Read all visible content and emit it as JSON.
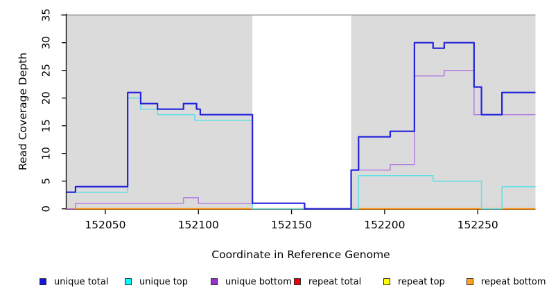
{
  "chart_data": {
    "type": "line",
    "title": "",
    "xlabel": "Coordinate in Reference Genome",
    "ylabel": "Read Coverage Depth",
    "xlim": [
      152029,
      152281
    ],
    "ylim": [
      0,
      35
    ],
    "x_ticks": [
      152050,
      152100,
      152150,
      152200,
      152250
    ],
    "y_ticks": [
      0,
      5,
      10,
      15,
      20,
      25,
      30,
      35
    ],
    "step_mode": "after",
    "grid": "off",
    "background_shading": {
      "color": "#dbdbdb",
      "regions": [
        {
          "start": 152029,
          "end": 152129
        },
        {
          "start": 152182,
          "end": 152281
        }
      ]
    },
    "reference_line": {
      "y": 35,
      "color": "#9d9d9d"
    },
    "series": [
      {
        "name": "repeat total",
        "color": "#dd0000",
        "width": 1.5,
        "points": [
          [
            152029,
            0
          ]
        ]
      },
      {
        "name": "repeat top",
        "color": "#f5f560",
        "width": 1.5,
        "points": [
          [
            152029,
            0
          ]
        ]
      },
      {
        "name": "repeat bottom",
        "color": "#ff8c00",
        "width": 1.9,
        "points": [
          [
            152029,
            0
          ]
        ]
      },
      {
        "name": "unique bottom",
        "color": "#b078e0",
        "width": 1.4,
        "points": [
          [
            152029,
            0
          ],
          [
            152034,
            1
          ],
          [
            152092,
            2
          ],
          [
            152100,
            1
          ],
          [
            152157,
            0
          ],
          [
            152182,
            7
          ],
          [
            152203,
            8
          ],
          [
            152216,
            24
          ],
          [
            152232,
            25
          ],
          [
            152248,
            17
          ]
        ]
      },
      {
        "name": "unique top",
        "color": "#5edfe6",
        "width": 1.5,
        "points": [
          [
            152029,
            3
          ],
          [
            152062,
            20
          ],
          [
            152069,
            18
          ],
          [
            152078,
            17
          ],
          [
            152098,
            16
          ],
          [
            152129,
            0
          ],
          [
            152186,
            6
          ],
          [
            152226,
            5
          ],
          [
            152252,
            0
          ],
          [
            152263,
            4
          ]
        ]
      },
      {
        "name": "unique total",
        "color": "#2121dd",
        "width": 2.2,
        "points": [
          [
            152029,
            3
          ],
          [
            152034,
            4
          ],
          [
            152062,
            21
          ],
          [
            152069,
            19
          ],
          [
            152078,
            18
          ],
          [
            152092,
            19
          ],
          [
            152099,
            18
          ],
          [
            152101,
            17
          ],
          [
            152129,
            1
          ],
          [
            152157,
            0
          ],
          [
            152182,
            7
          ],
          [
            152186,
            13
          ],
          [
            152203,
            14
          ],
          [
            152216,
            30
          ],
          [
            152226,
            29
          ],
          [
            152232,
            30
          ],
          [
            152248,
            22
          ],
          [
            152252,
            17
          ],
          [
            152263,
            21
          ]
        ]
      }
    ],
    "legend": {
      "position": "bottom",
      "items": [
        {
          "label": "unique total",
          "color": "#1515e0"
        },
        {
          "label": "unique top",
          "color": "#00ffff"
        },
        {
          "label": "unique bottom",
          "color": "#9932cc"
        },
        {
          "label": "repeat total",
          "color": "#ee0000"
        },
        {
          "label": "repeat top",
          "color": "#ffff00"
        },
        {
          "label": "repeat bottom",
          "color": "#ffa019"
        }
      ]
    }
  }
}
